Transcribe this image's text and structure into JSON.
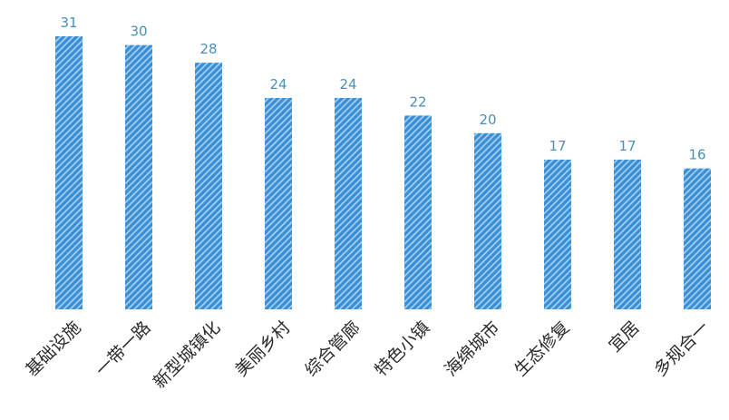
{
  "chart_data": {
    "type": "bar",
    "categories": [
      "基础设施",
      "一带一路",
      "新型城镇化",
      "美丽乡村",
      "综合管廊",
      "特色小镇",
      "海绵城市",
      "生态修复",
      "宜居",
      "多规合一"
    ],
    "values": [
      31,
      30,
      28,
      24,
      24,
      22,
      20,
      17,
      17,
      16
    ],
    "title": "",
    "xlabel": "",
    "ylabel": "",
    "ylim": [
      0,
      31
    ],
    "grid": false,
    "legend": "none",
    "data_labels": true,
    "colors": {
      "bar_fill": "#3b8fd6",
      "bar_stripe": "#a9d3f5",
      "value_label": "#4a8fb5",
      "tick_label": "#2b2b2b"
    }
  }
}
